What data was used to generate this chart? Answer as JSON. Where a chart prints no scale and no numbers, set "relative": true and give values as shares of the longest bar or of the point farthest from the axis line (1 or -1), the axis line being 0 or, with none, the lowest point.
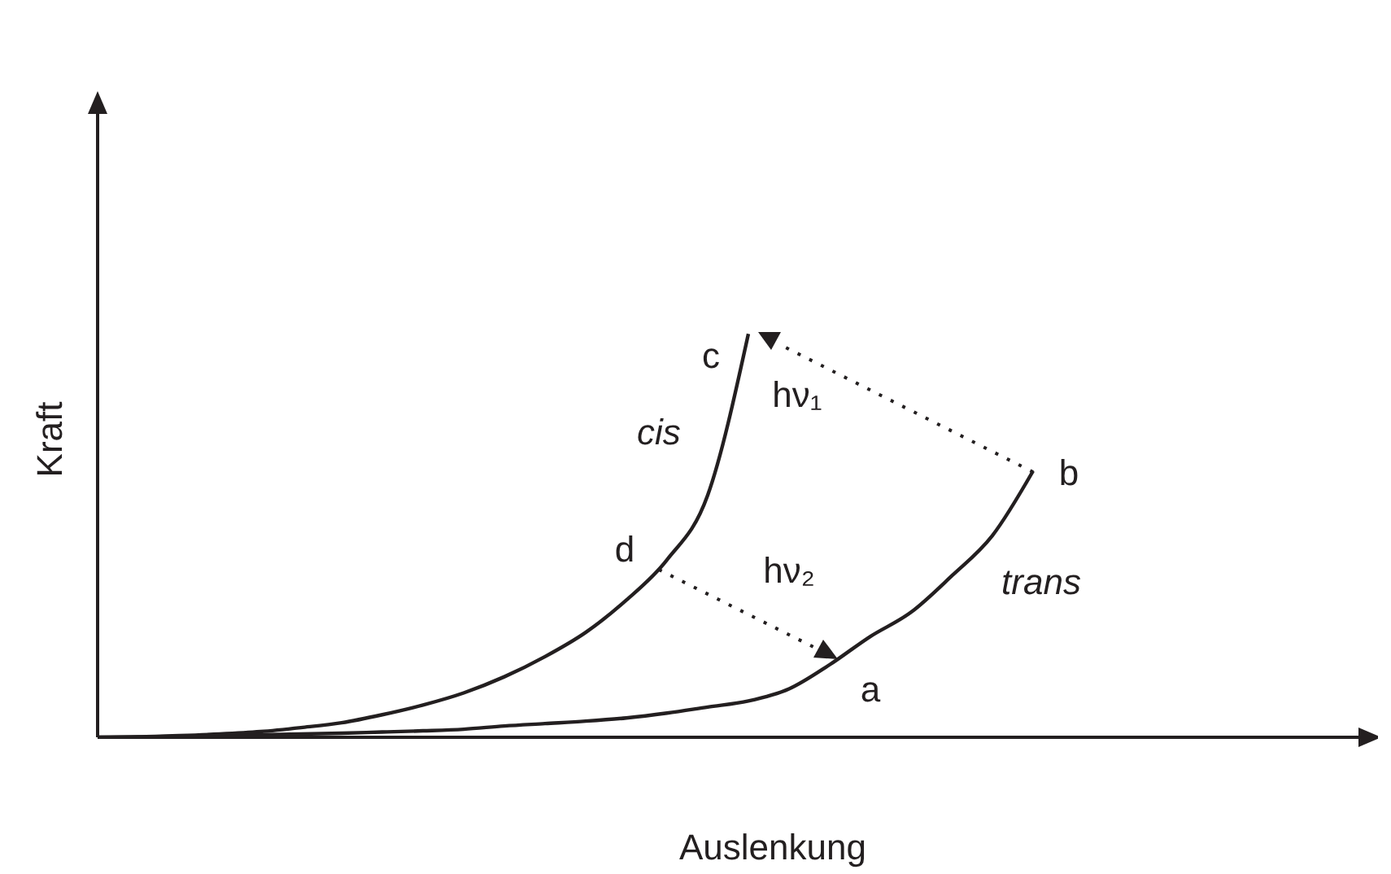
{
  "chart_data": {
    "type": "line",
    "xlabel": "Auslenkung",
    "ylabel": "Kraft",
    "relative": true,
    "legend": false,
    "grid": false,
    "marker": "none",
    "line_style": "solid",
    "categories": [
      null,
      null,
      null,
      null,
      null,
      null,
      null,
      null,
      null,
      null,
      null,
      null,
      null,
      null,
      null,
      null,
      null,
      null,
      null,
      null,
      null,
      null,
      null,
      null,
      null,
      null,
      null,
      null,
      null,
      null,
      null,
      null
    ],
    "series": [
      {
        "name": "cis",
        "color": "#231f20",
        "values": [
          0,
          0.001,
          0.004,
          0.008,
          0.014,
          0.024,
          0.036,
          0.056,
          0.08,
          0.11,
          0.15,
          0.2,
          0.26,
          0.34,
          0.44,
          0.6,
          1,
          null,
          null,
          null,
          null,
          null,
          null,
          null,
          null,
          null,
          null,
          null,
          null,
          null,
          null,
          null
        ]
      },
      {
        "name": "trans",
        "color": "#231f20",
        "values": [
          0,
          0.001,
          0.002,
          0.004,
          0.006,
          0.008,
          0.01,
          0.013,
          0.016,
          0.02,
          0.028,
          0.034,
          0.04,
          0.048,
          0.06,
          0.075,
          0.09,
          0.12,
          0.18,
          0.25,
          0.31,
          0.4,
          0.5,
          0.66,
          null,
          null,
          null,
          null,
          null,
          null,
          null,
          null
        ]
      }
    ],
    "annotations": [
      "c",
      "b",
      "d",
      "a",
      "hν₁",
      "hν₂"
    ]
  }
}
